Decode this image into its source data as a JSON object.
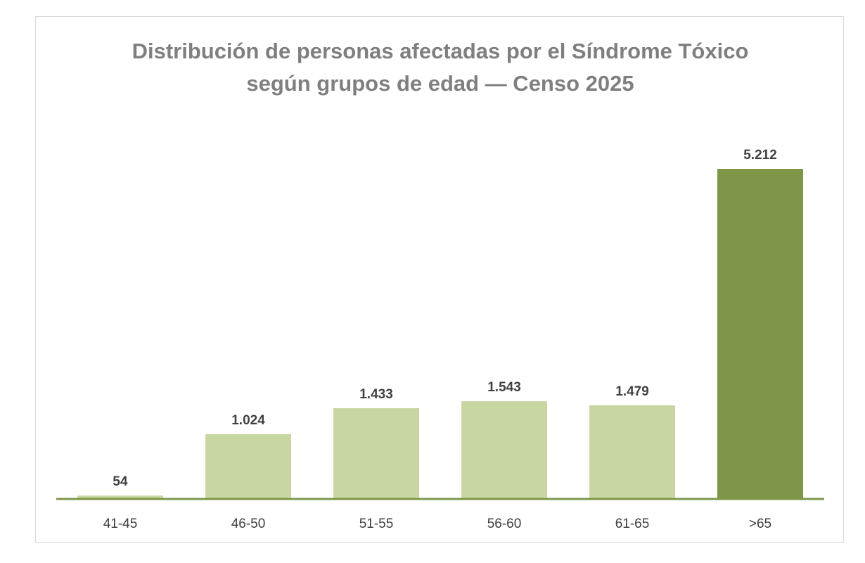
{
  "chart_data": {
    "type": "bar",
    "title_lines": [
      "Distribución de personas afectadas por el Síndrome Tóxico",
      "según grupos de edad — Censo 2025"
    ],
    "categories": [
      "41-45",
      "46-50",
      "51-55",
      "56-60",
      "61-65",
      ">65"
    ],
    "values": [
      54,
      1024,
      1433,
      1543,
      1479,
      5212
    ],
    "value_labels": [
      "54",
      "1.024",
      "1.433",
      "1.543",
      "1.479",
      "5.212"
    ],
    "highlight_index": 5,
    "xlabel": "",
    "ylabel": "",
    "ylim": [
      0,
      5212
    ],
    "grid": false,
    "legend": "none",
    "colors": {
      "bar": "#c8d6a2",
      "highlight": "#7f9649",
      "axis": "#7f9649"
    }
  }
}
